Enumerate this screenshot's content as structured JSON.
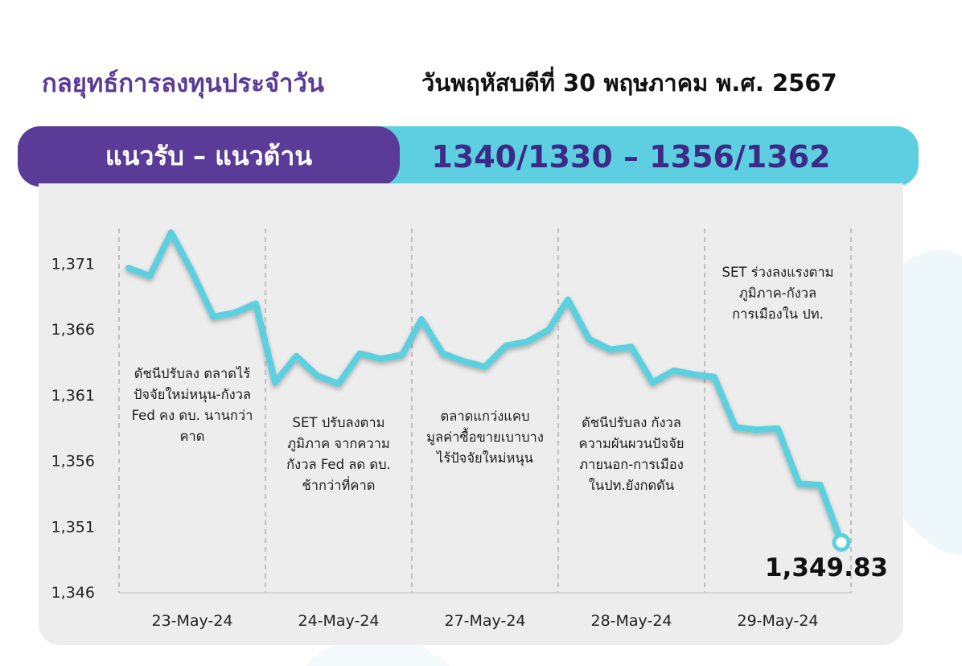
{
  "header": {
    "title": "กลยุทธ์การลงทุนประจำวัน",
    "date": "วันพฤหัสบดีที่ 30 พฤษภาคม พ.ศ. 2567"
  },
  "banner": {
    "label": "แนวรับ – แนวต้าน",
    "levels": "1340/1330  –  1356/1362"
  },
  "colors": {
    "brand_purple": "#5b3b98",
    "accent_cyan": "#5dcfe0",
    "line": "#5dd0e0"
  },
  "chart_data": {
    "type": "line",
    "ylim": [
      1346,
      1375
    ],
    "yticks": [
      1346,
      1351,
      1356,
      1361,
      1366,
      1371
    ],
    "ytick_labels": [
      "1,346",
      "1,351",
      "1,356",
      "1,361",
      "1,366",
      "1,371"
    ],
    "days": [
      "23-May-24",
      "24-May-24",
      "27-May-24",
      "28-May-24",
      "29-May-24"
    ],
    "grid": "dashed vertical separators between days",
    "series": [
      {
        "values": [
          [
            1370.7,
            1370.1,
            1373.4,
            1370.4,
            1367.0,
            1367.3,
            1368.0
          ],
          [
            1362.0,
            1364.0,
            1362.5,
            1361.9,
            1364.2,
            1363.8,
            1364.1
          ],
          [
            1366.8,
            1364.2,
            1363.6,
            1363.2,
            1364.8,
            1365.1,
            1366.0
          ],
          [
            1368.3,
            1365.3,
            1364.5,
            1364.7,
            1362.0,
            1362.9,
            1362.6
          ],
          [
            1362.4,
            1358.6,
            1358.4,
            1358.5,
            1354.3,
            1354.2,
            1349.83
          ]
        ]
      }
    ],
    "annotations": [
      {
        "day_index": 0,
        "text": [
          "ดัชนีปรับลง ตลาดไร้",
          "ปัจจัยใหม่หนุน-กังวล",
          "Fed คง ดบ. นานกว่า",
          "คาด"
        ]
      },
      {
        "day_index": 1,
        "text": [
          "SET ปรับลงตาม",
          "ภูมิภาค จากความ",
          "กังวล Fed ลด ดบ.",
          "ช้ากว่าที่คาด"
        ]
      },
      {
        "day_index": 2,
        "text": [
          "ตลาดแกว่งแคบ",
          "มูลค่าซื้อขายเบาบาง",
          "ไร้ปัจจัยใหม่หนุน"
        ]
      },
      {
        "day_index": 3,
        "text": [
          "ดัชนีปรับลง กังวล",
          "ความผันผวนปัจจัย",
          "ภายนอก-การเมือง",
          "ในปท.ยังกดดัน"
        ]
      },
      {
        "day_index": 4,
        "text": [
          "SET ร่วงลงแรงตาม",
          "ภูมิภาค-กังวล",
          "การเมืองใน ปท."
        ]
      }
    ],
    "last_value_label": "1,349.83"
  }
}
